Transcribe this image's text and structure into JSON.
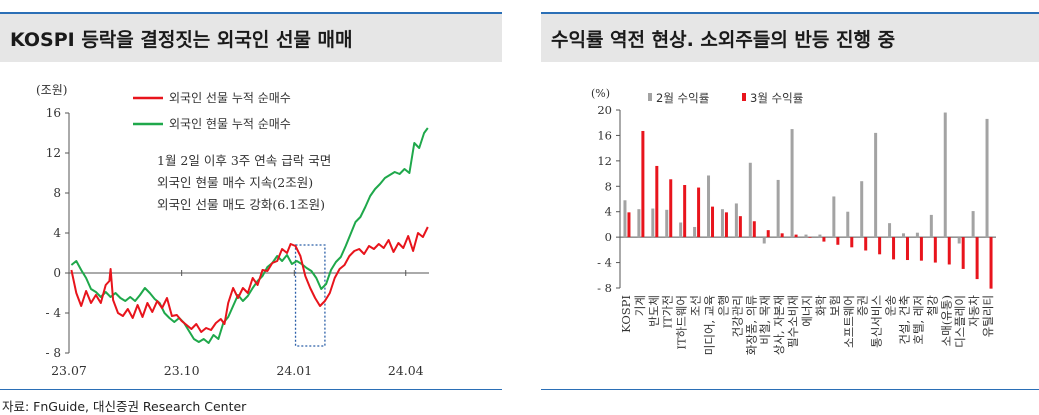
{
  "left": {
    "title": "KOSPI 등락을 결정짓는 외국인 선물 매매",
    "unit": "(조원)",
    "note_lines": [
      "1월 2일 이후 3주 연속 급락 국면",
      "외국인 현물 매수 지속(2조원)",
      "외국인 선물 매도 강화(6.1조원)"
    ]
  },
  "right": {
    "title": "수익률 역전 현상. 소외주들의 반등 진행 중",
    "unit": "(%)"
  },
  "source": "자료: FnGuide, 대신증권 Research Center",
  "colors": {
    "red": "#e8141c",
    "green": "#1fa84b",
    "gray": "#a3a3a3",
    "accent_blue": "#2b6fb6",
    "title_bg": "#e6e6e6"
  },
  "chart_data": [
    {
      "type": "line",
      "ylim": [
        -8,
        16
      ],
      "yticks": [
        -8,
        -4,
        0,
        4,
        8,
        12,
        16
      ],
      "ytick_labels": [
        "- 8",
        "- 4",
        "0",
        "4",
        "8",
        "12",
        "16"
      ],
      "xlim": [
        "2023-07-01",
        "2024-04-20"
      ],
      "xticks": [
        "2023-07-01",
        "2023-10-01",
        "2024-01-01",
        "2024-04-01"
      ],
      "xtick_labels": [
        "23.07",
        "23.10",
        "24.01",
        "24.04"
      ],
      "series": [
        {
          "name": "외국인 선물 누적 순매수",
          "color": "red",
          "points": [
            [
              "2023-07-03",
              0.3
            ],
            [
              "2023-07-07",
              -2.0
            ],
            [
              "2023-07-11",
              -3.3
            ],
            [
              "2023-07-15",
              -1.8
            ],
            [
              "2023-07-19",
              -3.0
            ],
            [
              "2023-07-23",
              -2.2
            ],
            [
              "2023-07-27",
              -3.0
            ],
            [
              "2023-07-31",
              -1.2
            ],
            [
              "2023-08-03",
              -0.8
            ],
            [
              "2023-08-04",
              0.4
            ],
            [
              "2023-08-06",
              -2.7
            ],
            [
              "2023-08-10",
              -4.0
            ],
            [
              "2023-08-14",
              -4.3
            ],
            [
              "2023-08-18",
              -3.6
            ],
            [
              "2023-08-22",
              -4.5
            ],
            [
              "2023-08-26",
              -3.2
            ],
            [
              "2023-08-30",
              -4.4
            ],
            [
              "2023-09-03",
              -3.0
            ],
            [
              "2023-09-07",
              -3.9
            ],
            [
              "2023-09-11",
              -2.8
            ],
            [
              "2023-09-15",
              -3.5
            ],
            [
              "2023-09-19",
              -2.5
            ],
            [
              "2023-09-23",
              -4.3
            ],
            [
              "2023-09-27",
              -4.2
            ],
            [
              "2023-10-01",
              -4.8
            ],
            [
              "2023-10-05",
              -5.2
            ],
            [
              "2023-10-09",
              -5.6
            ],
            [
              "2023-10-13",
              -5.1
            ],
            [
              "2023-10-17",
              -5.9
            ],
            [
              "2023-10-21",
              -5.5
            ],
            [
              "2023-10-25",
              -5.7
            ],
            [
              "2023-10-29",
              -5.0
            ],
            [
              "2023-11-02",
              -4.6
            ],
            [
              "2023-11-05",
              -5.1
            ],
            [
              "2023-11-08",
              -3.0
            ],
            [
              "2023-11-12",
              -1.5
            ],
            [
              "2023-11-16",
              -2.5
            ],
            [
              "2023-11-20",
              -1.5
            ],
            [
              "2023-11-24",
              -2.0
            ],
            [
              "2023-11-28",
              -0.5
            ],
            [
              "2023-12-02",
              -1.2
            ],
            [
              "2023-12-06",
              0.3
            ],
            [
              "2023-12-10",
              0.2
            ],
            [
              "2023-12-14",
              1.0
            ],
            [
              "2023-12-18",
              1.2
            ],
            [
              "2023-12-22",
              2.4
            ],
            [
              "2023-12-26",
              2.0
            ],
            [
              "2023-12-29",
              2.9
            ],
            [
              "2024-01-02",
              2.7
            ],
            [
              "2024-01-06",
              1.7
            ],
            [
              "2024-01-10",
              -0.3
            ],
            [
              "2024-01-14",
              -1.5
            ],
            [
              "2024-01-18",
              -2.5
            ],
            [
              "2024-01-22",
              -3.3
            ],
            [
              "2024-01-26",
              -2.8
            ],
            [
              "2024-01-30",
              -2.0
            ],
            [
              "2024-02-03",
              -0.5
            ],
            [
              "2024-02-07",
              0.4
            ],
            [
              "2024-02-11",
              0.8
            ],
            [
              "2024-02-15",
              1.7
            ],
            [
              "2024-02-19",
              2.2
            ],
            [
              "2024-02-23",
              2.4
            ],
            [
              "2024-02-27",
              1.9
            ],
            [
              "2024-03-02",
              2.7
            ],
            [
              "2024-03-06",
              2.4
            ],
            [
              "2024-03-10",
              2.9
            ],
            [
              "2024-03-14",
              2.5
            ],
            [
              "2024-03-18",
              3.3
            ],
            [
              "2024-03-22",
              2.1
            ],
            [
              "2024-03-26",
              3.0
            ],
            [
              "2024-03-30",
              2.5
            ],
            [
              "2024-04-03",
              3.7
            ],
            [
              "2024-04-07",
              2.2
            ],
            [
              "2024-04-11",
              4.0
            ],
            [
              "2024-04-15",
              3.6
            ],
            [
              "2024-04-19",
              4.6
            ]
          ]
        },
        {
          "name": "외국인 현물 누적 순매수",
          "color": "green",
          "points": [
            [
              "2023-07-03",
              0.8
            ],
            [
              "2023-07-07",
              1.2
            ],
            [
              "2023-07-11",
              0.3
            ],
            [
              "2023-07-15",
              -0.5
            ],
            [
              "2023-07-19",
              -1.6
            ],
            [
              "2023-07-23",
              -1.9
            ],
            [
              "2023-07-27",
              -2.4
            ],
            [
              "2023-07-31",
              -1.9
            ],
            [
              "2023-08-04",
              -2.4
            ],
            [
              "2023-08-08",
              -2.0
            ],
            [
              "2023-08-12",
              -2.5
            ],
            [
              "2023-08-16",
              -2.8
            ],
            [
              "2023-08-20",
              -2.4
            ],
            [
              "2023-08-24",
              -2.8
            ],
            [
              "2023-08-28",
              -2.2
            ],
            [
              "2023-09-01",
              -1.5
            ],
            [
              "2023-09-05",
              -2.0
            ],
            [
              "2023-09-09",
              -2.6
            ],
            [
              "2023-09-13",
              -3.0
            ],
            [
              "2023-09-17",
              -4.0
            ],
            [
              "2023-09-21",
              -4.5
            ],
            [
              "2023-09-25",
              -4.9
            ],
            [
              "2023-09-29",
              -4.5
            ],
            [
              "2023-10-03",
              -5.0
            ],
            [
              "2023-10-07",
              -5.8
            ],
            [
              "2023-10-11",
              -6.6
            ],
            [
              "2023-10-15",
              -6.9
            ],
            [
              "2023-10-19",
              -6.6
            ],
            [
              "2023-10-23",
              -7.0
            ],
            [
              "2023-10-27",
              -6.2
            ],
            [
              "2023-10-31",
              -6.6
            ],
            [
              "2023-11-04",
              -5.0
            ],
            [
              "2023-11-08",
              -4.4
            ],
            [
              "2023-11-12",
              -3.3
            ],
            [
              "2023-11-16",
              -2.2
            ],
            [
              "2023-11-20",
              -2.8
            ],
            [
              "2023-11-24",
              -2.3
            ],
            [
              "2023-11-28",
              -1.5
            ],
            [
              "2023-12-02",
              -0.8
            ],
            [
              "2023-12-06",
              -0.3
            ],
            [
              "2023-12-10",
              0.6
            ],
            [
              "2023-12-14",
              1.0
            ],
            [
              "2023-12-18",
              1.7
            ],
            [
              "2023-12-22",
              1.2
            ],
            [
              "2023-12-26",
              1.8
            ],
            [
              "2023-12-30",
              0.9
            ],
            [
              "2024-01-03",
              1.2
            ],
            [
              "2024-01-07",
              0.9
            ],
            [
              "2024-01-11",
              0.5
            ],
            [
              "2024-01-15",
              0.2
            ],
            [
              "2024-01-19",
              -0.5
            ],
            [
              "2024-01-23",
              -1.6
            ],
            [
              "2024-01-27",
              -1.1
            ],
            [
              "2024-01-31",
              0.3
            ],
            [
              "2024-02-04",
              1.1
            ],
            [
              "2024-02-08",
              1.6
            ],
            [
              "2024-02-12",
              2.7
            ],
            [
              "2024-02-16",
              3.9
            ],
            [
              "2024-02-20",
              5.1
            ],
            [
              "2024-02-24",
              5.6
            ],
            [
              "2024-02-28",
              6.6
            ],
            [
              "2024-03-03",
              7.7
            ],
            [
              "2024-03-07",
              8.4
            ],
            [
              "2024-03-11",
              8.9
            ],
            [
              "2024-03-15",
              9.5
            ],
            [
              "2024-03-19",
              9.8
            ],
            [
              "2024-03-23",
              10.1
            ],
            [
              "2024-03-27",
              9.9
            ],
            [
              "2024-03-31",
              10.4
            ],
            [
              "2024-04-04",
              10.0
            ],
            [
              "2024-04-08",
              13.0
            ],
            [
              "2024-04-12",
              12.5
            ],
            [
              "2024-04-16",
              14.0
            ],
            [
              "2024-04-19",
              14.5
            ]
          ]
        }
      ],
      "highlight": {
        "x_from": "2024-01-02",
        "x_to": "2024-01-26",
        "y_from": -7.3,
        "y_to": 2.8
      }
    },
    {
      "type": "bar",
      "ylim": [
        -8,
        20
      ],
      "yticks": [
        -8,
        -4,
        0,
        4,
        8,
        12,
        16,
        20
      ],
      "ytick_labels": [
        "- 8",
        "- 4",
        "0",
        "4",
        "8",
        "12",
        "16",
        "20"
      ],
      "categories": [
        "KOSPI",
        "기계",
        "반도체",
        "IT가전",
        "IT하드웨어",
        "조선",
        "미디어, 교육",
        "은행",
        "건강관리",
        "화장품, 의류",
        "비철, 목재",
        "상사, 자본재",
        "필수소비재",
        "에너지",
        "화학",
        "보험",
        "소프트웨어",
        "증권",
        "통신서비스",
        "운송",
        "건설, 건축",
        "호텔, 레저",
        "철강",
        "소매(유통)",
        "디스플레이",
        "자동차",
        "유틸리티"
      ],
      "series": [
        {
          "name": "2월 수익률",
          "color": "gray",
          "values": [
            5.8,
            4.4,
            4.5,
            4.3,
            2.3,
            1.6,
            9.7,
            4.4,
            5.3,
            11.7,
            -1.0,
            9.0,
            17.0,
            0.4,
            0.4,
            6.4,
            4.0,
            8.8,
            16.4,
            2.2,
            0.6,
            0.7,
            3.5,
            19.6,
            -1.0,
            4.1,
            18.6
          ]
        },
        {
          "name": "3월 수익률",
          "color": "red",
          "values": [
            3.9,
            16.7,
            11.2,
            9.1,
            8.2,
            7.8,
            4.8,
            3.9,
            3.3,
            2.5,
            1.1,
            0.6,
            0.4,
            -0.1,
            -0.7,
            -1.2,
            -1.6,
            -2.1,
            -2.7,
            -3.5,
            -3.6,
            -3.7,
            -4.0,
            -4.3,
            -5.0,
            -6.6,
            -8.1
          ]
        }
      ]
    }
  ]
}
